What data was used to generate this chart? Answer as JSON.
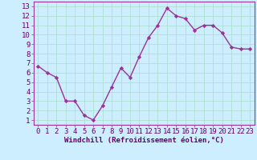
{
  "x": [
    0,
    1,
    2,
    3,
    4,
    5,
    6,
    7,
    8,
    9,
    10,
    11,
    12,
    13,
    14,
    15,
    16,
    17,
    18,
    19,
    20,
    21,
    22,
    23
  ],
  "y": [
    6.7,
    6.0,
    5.5,
    3.0,
    3.0,
    1.5,
    1.0,
    2.5,
    4.5,
    6.5,
    5.5,
    7.7,
    9.7,
    11.0,
    12.8,
    12.0,
    11.7,
    10.5,
    11.0,
    11.0,
    10.2,
    8.7,
    8.5,
    8.5
  ],
  "line_color": "#993399",
  "marker": "D",
  "marker_size": 2.2,
  "bg_color": "#cceeff",
  "grid_color": "#aaddcc",
  "xlabel": "Windchill (Refroidissement éolien,°C)",
  "xlim": [
    -0.5,
    23.5
  ],
  "ylim": [
    0.5,
    13.5
  ],
  "yticks": [
    1,
    2,
    3,
    4,
    5,
    6,
    7,
    8,
    9,
    10,
    11,
    12,
    13
  ],
  "xticks": [
    0,
    1,
    2,
    3,
    4,
    5,
    6,
    7,
    8,
    9,
    10,
    11,
    12,
    13,
    14,
    15,
    16,
    17,
    18,
    19,
    20,
    21,
    22,
    23
  ],
  "xlabel_fontsize": 6.5,
  "tick_fontsize": 6.5,
  "line_width": 1.0,
  "spine_color": "#993399",
  "text_color": "#660066"
}
